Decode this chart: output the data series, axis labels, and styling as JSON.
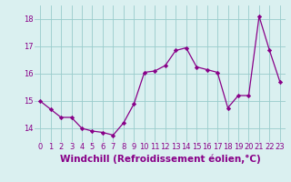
{
  "x": [
    0,
    1,
    2,
    3,
    4,
    5,
    6,
    7,
    8,
    9,
    10,
    11,
    12,
    13,
    14,
    15,
    16,
    17,
    18,
    19,
    20,
    21,
    22,
    23
  ],
  "y": [
    15.0,
    14.7,
    14.4,
    14.4,
    14.0,
    13.9,
    13.85,
    13.75,
    14.2,
    14.9,
    16.05,
    16.1,
    16.3,
    16.85,
    16.95,
    16.25,
    16.15,
    16.05,
    14.75,
    15.2,
    15.2,
    18.1,
    16.85,
    15.7
  ],
  "line_color": "#880088",
  "marker": "D",
  "marker_size": 2.2,
  "bg_color": "#daf0f0",
  "grid_color": "#99cccc",
  "xlabel": "Windchill (Refroidissement éolien,°C)",
  "ylim": [
    13.5,
    18.5
  ],
  "yticks": [
    14,
    15,
    16,
    17,
    18
  ],
  "xticks": [
    0,
    1,
    2,
    3,
    4,
    5,
    6,
    7,
    8,
    9,
    10,
    11,
    12,
    13,
    14,
    15,
    16,
    17,
    18,
    19,
    20,
    21,
    22,
    23
  ],
  "label_color": "#880088",
  "tick_label_fontsize": 6.0,
  "xlabel_fontsize": 7.5
}
